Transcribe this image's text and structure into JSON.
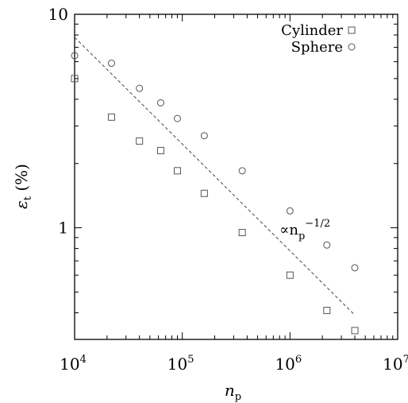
{
  "chart_data": {
    "type": "scatter",
    "x_scale": "log",
    "y_scale": "log",
    "xlim": [
      10000,
      10000000
    ],
    "ylim": [
      0.3,
      10
    ],
    "x_ticks": [
      {
        "base": "10",
        "exp": "4",
        "value": 10000
      },
      {
        "base": "10",
        "exp": "5",
        "value": 100000
      },
      {
        "base": "10",
        "exp": "6",
        "value": 1000000
      },
      {
        "base": "10",
        "exp": "7",
        "value": 10000000
      }
    ],
    "y_ticks": [
      {
        "label": "1",
        "value": 1
      },
      {
        "label": "10",
        "value": 10
      }
    ],
    "xlabel": {
      "main": "n",
      "sub": "p"
    },
    "ylabel": {
      "main": "ε",
      "sub": "t",
      "unit": " (%)"
    },
    "grid": false,
    "legend_position": "top-right",
    "series": [
      {
        "name": "Cylinder",
        "marker": "square",
        "x": [
          10000,
          22000,
          40000,
          63000,
          90000,
          160000,
          360000,
          1000000,
          2200000,
          4000000
        ],
        "y": [
          5.0,
          3.3,
          2.55,
          2.3,
          1.85,
          1.45,
          0.95,
          0.6,
          0.41,
          0.33
        ]
      },
      {
        "name": "Sphere",
        "marker": "circle",
        "x": [
          10000,
          22000,
          40000,
          63000,
          90000,
          160000,
          360000,
          1000000,
          2200000,
          4000000
        ],
        "y": [
          6.4,
          5.9,
          4.5,
          3.85,
          3.25,
          2.7,
          1.85,
          1.2,
          0.83,
          0.65
        ]
      }
    ],
    "reference_line": {
      "x": [
        10000,
        4000000
      ],
      "y": [
        7.8,
        0.39
      ],
      "style": "dashed",
      "label_main": "∝n",
      "label_sub": "p",
      "label_exp": "−1/2",
      "label_at": {
        "x": 800000,
        "y": 0.93
      }
    }
  }
}
